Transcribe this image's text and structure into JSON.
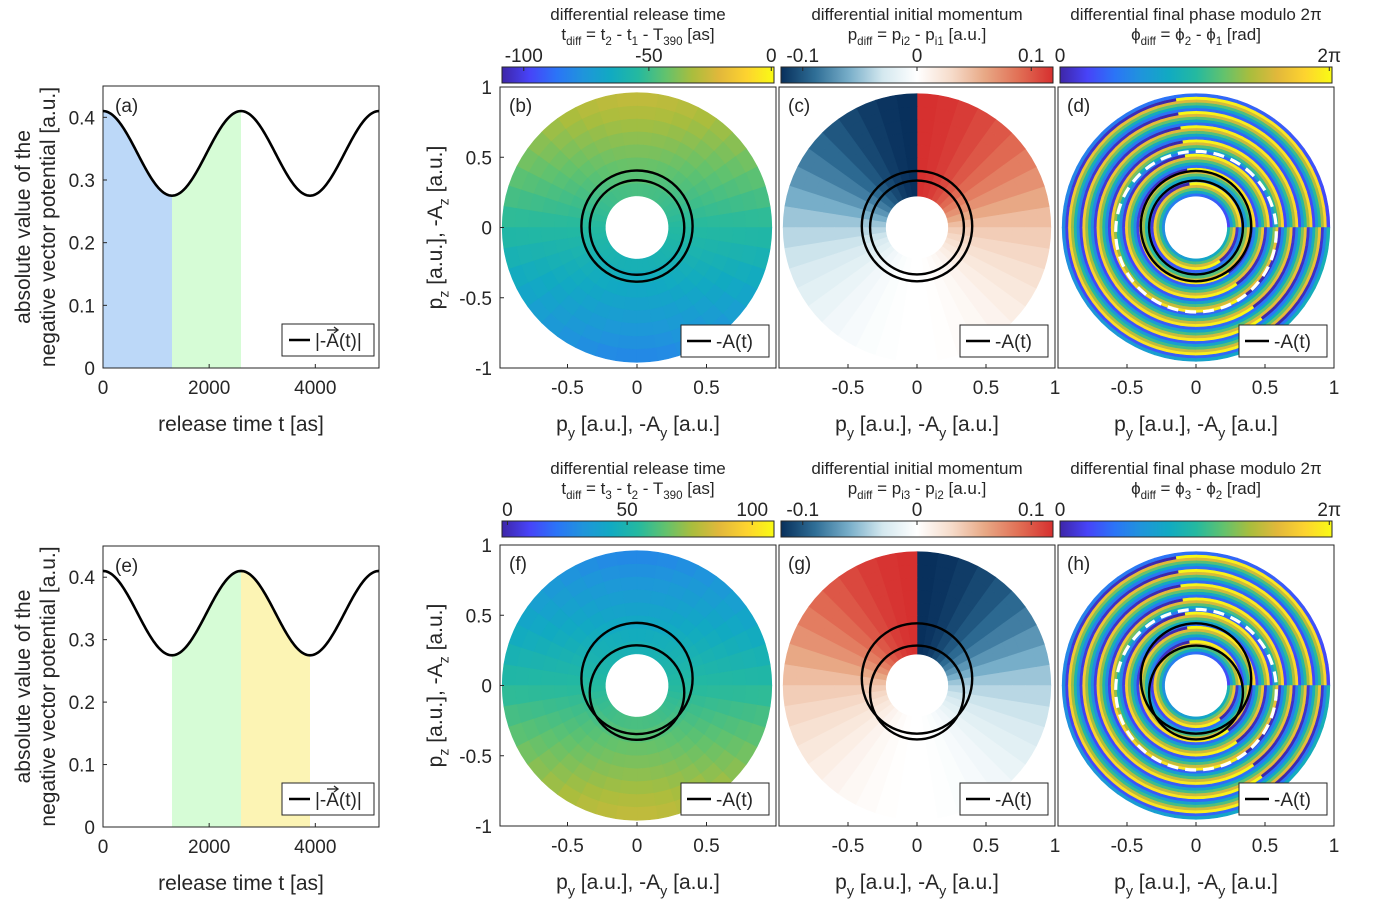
{
  "colors": {
    "shade_blue": "#bcd8f8",
    "shade_green": "#d6fcd6",
    "shade_yellow": "#fcf4b4",
    "curve": "#000000",
    "dashed_ring": "#ffffff",
    "parula": [
      "#3e26a8",
      "#4743f8",
      "#2b74f7",
      "#1f95db",
      "#11aac2",
      "#24b9a0",
      "#61c26e",
      "#aabd3d",
      "#e2b83b",
      "#fdd32f",
      "#f9fb14"
    ],
    "diverging": [
      "#08305c",
      "#2f6e96",
      "#78aec9",
      "#d4e8ef",
      "#ffffff",
      "#f6dccb",
      "#e8a885",
      "#e16f55",
      "#d62f2f"
    ]
  },
  "line_panels": [
    {
      "id": "a",
      "panel_label": "(a)",
      "ylabel_line1": "absolute value of the",
      "ylabel_line2": "negative vector potential [a.u.]",
      "xlabel": "release time t [as]",
      "xticks": [
        "0",
        "2000",
        "4000"
      ],
      "yticks": [
        "0",
        "0.1",
        "0.2",
        "0.3",
        "0.4"
      ],
      "legend": "|-A(t)|",
      "shaded_intervals": [
        {
          "from": 0,
          "to": 1300,
          "color": "shade_blue"
        },
        {
          "from": 1300,
          "to": 2600,
          "color": "shade_green"
        }
      ]
    },
    {
      "id": "e",
      "panel_label": "(e)",
      "ylabel_line1": "absolute value of the",
      "ylabel_line2": "negative vector potential [a.u.]",
      "xlabel": "release time t [as]",
      "xticks": [
        "0",
        "2000",
        "4000"
      ],
      "yticks": [
        "0",
        "0.1",
        "0.2",
        "0.3",
        "0.4"
      ],
      "legend": "|-A(t)|",
      "shaded_intervals": [
        {
          "from": 1300,
          "to": 2600,
          "color": "shade_green"
        },
        {
          "from": 2600,
          "to": 3900,
          "color": "shade_yellow"
        }
      ]
    }
  ],
  "polar_panels": [
    {
      "id": "b",
      "panel_label": "(b)",
      "kind": "time",
      "reversed": false,
      "cb_title1": "differential release time",
      "cb_title2": "t_diff = t_2 - t_1 - T_390 [as]",
      "cb_ticks": [
        "-100",
        "-50",
        "0"
      ],
      "show_ylabel": true
    },
    {
      "id": "c",
      "panel_label": "(c)",
      "kind": "momentum",
      "reversed": false,
      "cb_title1": "differential initial momentum",
      "cb_title2": "p_diff = p_i2 - p_i1 [a.u.]",
      "cb_ticks": [
        "-0.1",
        "0",
        "0.1"
      ],
      "show_ylabel": false
    },
    {
      "id": "d",
      "panel_label": "(d)",
      "kind": "phase",
      "reversed": false,
      "cb_title1": "differential final phase modulo 2π",
      "cb_title2": "ϕ_diff = ϕ_2 - ϕ_1 [rad]",
      "cb_ticks": [
        "0",
        "2π"
      ],
      "show_ylabel": false
    },
    {
      "id": "f",
      "panel_label": "(f)",
      "kind": "time",
      "reversed": true,
      "cb_title1": "differential release time",
      "cb_title2": "t_diff = t_3 - t_2 - T_390 [as]",
      "cb_ticks": [
        "0",
        "50",
        "100"
      ],
      "show_ylabel": true
    },
    {
      "id": "g",
      "panel_label": "(g)",
      "kind": "momentum",
      "reversed": true,
      "cb_title1": "differential initial momentum",
      "cb_title2": "p_diff = p_i3 - p_i2 [a.u.]",
      "cb_ticks": [
        "-0.1",
        "0",
        "0.1"
      ],
      "show_ylabel": false
    },
    {
      "id": "h",
      "panel_label": "(h)",
      "kind": "phase",
      "reversed": true,
      "cb_title1": "differential final phase modulo 2π",
      "cb_title2": "ϕ_diff = ϕ_3 - ϕ_2 [rad]",
      "cb_ticks": [
        "0",
        "2π"
      ],
      "show_ylabel": false
    }
  ],
  "polar_axes": {
    "xlabel": "p_y [a.u.], -A_y [a.u.]",
    "ylabel": "p_z [a.u.], -A_z [a.u.]",
    "xticks_b": [
      "-0.5",
      "0",
      "0.5"
    ],
    "xticks": [
      "-0.5",
      "0",
      "0.5",
      "1"
    ],
    "yticks": [
      "1",
      "0.5",
      "0",
      "-0.5",
      "-1"
    ],
    "legend": "-A(t)"
  },
  "chart_data": [
    {
      "type": "line",
      "panel": "(a)",
      "xlabel": "release time t [as]",
      "ylabel": "absolute value of the negative vector potential [a.u.]",
      "xlim": [
        0,
        5200
      ],
      "ylim": [
        0,
        0.45
      ],
      "series": [
        {
          "name": "|-A(t)|",
          "x": [
            0,
            325,
            650,
            975,
            1300,
            1625,
            1950,
            2275,
            2600,
            2925,
            3250,
            3575,
            3900,
            4225,
            4550,
            4875,
            5200
          ],
          "y": [
            0.41,
            0.398,
            0.3425,
            0.2868,
            0.275,
            0.2868,
            0.3425,
            0.398,
            0.41,
            0.398,
            0.3425,
            0.2868,
            0.275,
            0.2868,
            0.3425,
            0.398,
            0.41
          ]
        }
      ],
      "shaded": [
        [
          0,
          1300
        ],
        [
          1300,
          2600
        ]
      ]
    },
    {
      "type": "line",
      "panel": "(e)",
      "xlabel": "release time t [as]",
      "ylabel": "absolute value of the negative vector potential [a.u.]",
      "xlim": [
        0,
        5200
      ],
      "ylim": [
        0,
        0.45
      ],
      "series": [
        {
          "name": "|-A(t)|",
          "x": [
            0,
            325,
            650,
            975,
            1300,
            1625,
            1950,
            2275,
            2600,
            2925,
            3250,
            3575,
            3900,
            4225,
            4550,
            4875,
            5200
          ],
          "y": [
            0.41,
            0.398,
            0.3425,
            0.2868,
            0.275,
            0.2868,
            0.3425,
            0.398,
            0.41,
            0.398,
            0.3425,
            0.2868,
            0.275,
            0.2868,
            0.3425,
            0.398,
            0.41
          ]
        }
      ],
      "shaded": [
        [
          1300,
          2600
        ],
        [
          2600,
          3900
        ]
      ]
    },
    {
      "type": "heatmap",
      "panel": "(b)",
      "xlim": [
        -1,
        1
      ],
      "ylim": [
        -1,
        1
      ],
      "clim": [
        -100,
        0
      ],
      "colorbar": "differential release time [as]"
    },
    {
      "type": "heatmap",
      "panel": "(c)",
      "xlim": [
        -1,
        1
      ],
      "ylim": [
        -1,
        1
      ],
      "clim": [
        -0.12,
        0.12
      ],
      "colorbar": "differential initial momentum [a.u.]"
    },
    {
      "type": "heatmap",
      "panel": "(d)",
      "xlim": [
        -1,
        1
      ],
      "ylim": [
        -1,
        1
      ],
      "clim": [
        0,
        6.2832
      ],
      "colorbar": "differential final phase [rad]"
    },
    {
      "type": "heatmap",
      "panel": "(f)",
      "xlim": [
        -1,
        1
      ],
      "ylim": [
        -1,
        1
      ],
      "clim": [
        0,
        110
      ],
      "colorbar": "differential release time [as]"
    },
    {
      "type": "heatmap",
      "panel": "(g)",
      "xlim": [
        -1,
        1
      ],
      "ylim": [
        -1,
        1
      ],
      "clim": [
        -0.12,
        0.12
      ],
      "colorbar": "differential initial momentum [a.u.]"
    },
    {
      "type": "heatmap",
      "panel": "(h)",
      "xlim": [
        -1,
        1
      ],
      "ylim": [
        -1,
        1
      ],
      "clim": [
        0,
        6.2832
      ],
      "colorbar": "differential final phase [rad]"
    }
  ]
}
